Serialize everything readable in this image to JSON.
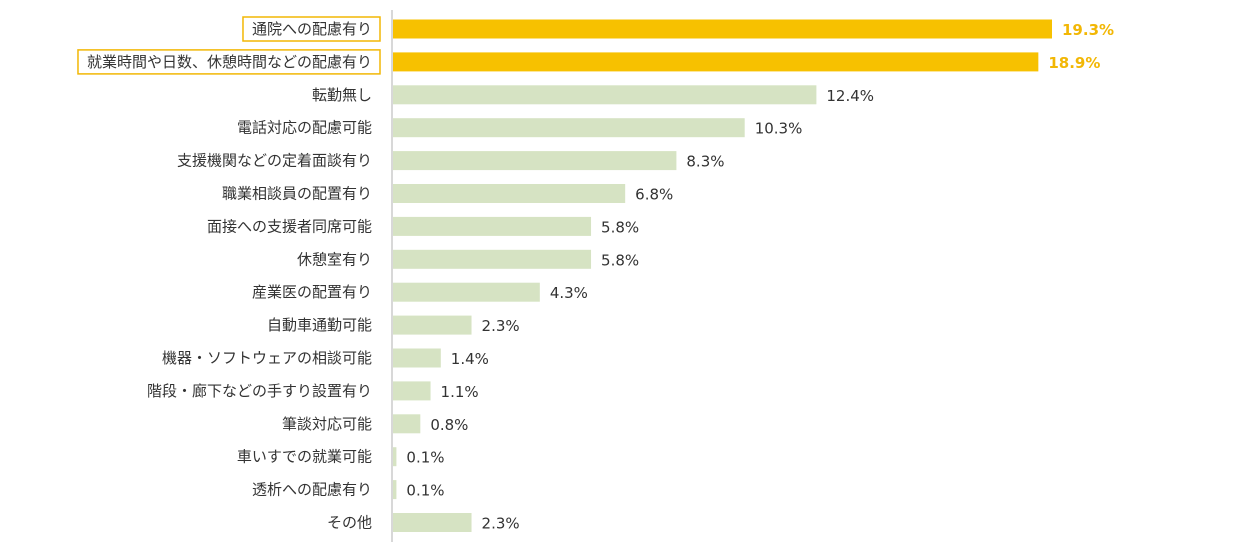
{
  "chart_data": {
    "type": "bar",
    "orientation": "horizontal",
    "title": "",
    "xlabel": "",
    "ylabel": "",
    "unit": "%",
    "categories": [
      "通院への配慮有り",
      "就業時間や日数、休憩時間などの配慮有り",
      "転勤無し",
      "電話対応の配慮可能",
      "支援機関などの定着面談有り",
      "職業相談員の配置有り",
      "面接への支援者同席可能",
      "休憩室有り",
      "産業医の配置有り",
      "自動車通勤可能",
      "機器・ソフトウェアの相談可能",
      "階段・廊下などの手すり設置有り",
      "筆談対応可能",
      "車いすでの就業可能",
      "透析への配慮有り",
      "その他"
    ],
    "values": [
      19.3,
      18.9,
      12.4,
      10.3,
      8.3,
      6.8,
      5.8,
      5.8,
      4.3,
      2.3,
      1.4,
      1.1,
      0.8,
      0.1,
      0.1,
      2.3
    ],
    "value_labels": [
      "19.3%",
      "18.9%",
      "12.4%",
      "10.3%",
      "8.3%",
      "6.8%",
      "5.8%",
      "5.8%",
      "4.3%",
      "2.3%",
      "1.4%",
      "1.1%",
      "0.8%",
      "0.1%",
      "0.1%",
      "2.3%"
    ],
    "highlighted": [
      0,
      1
    ],
    "xlim": [
      0,
      20
    ],
    "grid": false,
    "legend": "none",
    "colors": {
      "highlight": "#f7c100",
      "normal": "#d6e3c3",
      "highlight_label": "#f2b705",
      "label": "#333333",
      "axis": "#b0b0b0",
      "box_border": "#f2b705"
    }
  }
}
